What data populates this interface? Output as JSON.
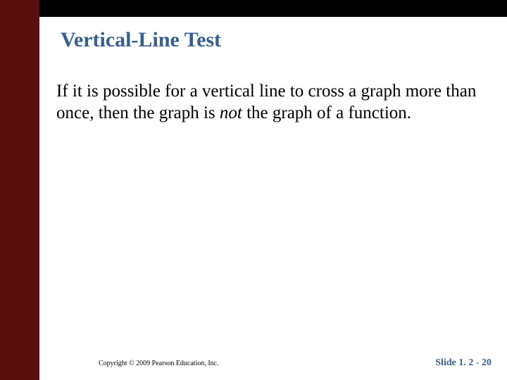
{
  "layout": {
    "sidebar_color": "#5a0e0e",
    "topbar_color": "#000000",
    "background_color": "#ffffff",
    "title_color": "#365f91",
    "body_color": "#000000",
    "slide_number_color": "#365f91"
  },
  "title": "Vertical-Line Test",
  "body": {
    "text_before": "If it is possible for a vertical line to cross a graph more than once, then the graph is ",
    "italic_word": "not",
    "text_after": " the graph of a function."
  },
  "footer": {
    "copyright": "Copyright © 2009 Pearson Education, Inc.",
    "slide_number": "Slide 1. 2 - 20"
  }
}
